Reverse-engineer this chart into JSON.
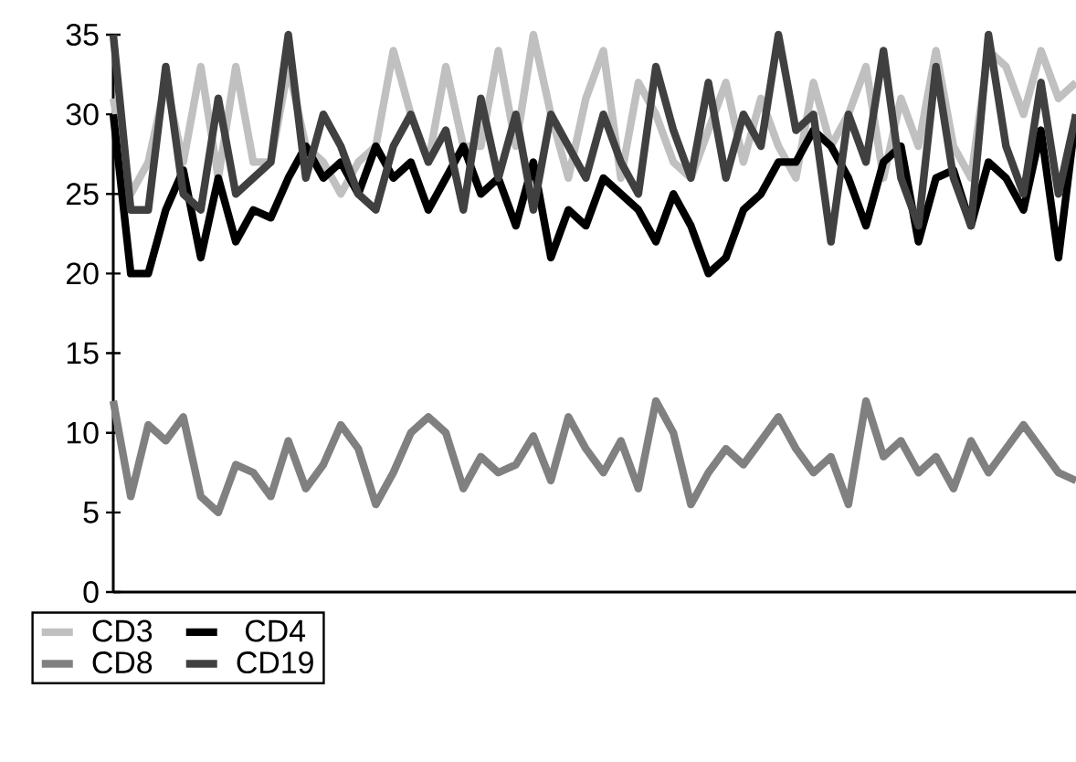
{
  "chart_data": {
    "type": "line",
    "categories": [
      null,
      null,
      null,
      null,
      null,
      null,
      null,
      null,
      null,
      null,
      null,
      null,
      null,
      null,
      null,
      null,
      null,
      null,
      null,
      null,
      null,
      null,
      null,
      null,
      null,
      null,
      null,
      null,
      null,
      null,
      null,
      null,
      null,
      null,
      null,
      null,
      null,
      null,
      null,
      null,
      null,
      null,
      null,
      null,
      null,
      null,
      null,
      null,
      null,
      null,
      null,
      null,
      null,
      null,
      null,
      null
    ],
    "series": [
      {
        "name": "CD3",
        "color": "#c0c0c0",
        "values": [
          31,
          25,
          27,
          32,
          27,
          33,
          26,
          33,
          27,
          27,
          33,
          28,
          27,
          25,
          27,
          28,
          34,
          30,
          27,
          33,
          28,
          28,
          34,
          28,
          35,
          30,
          26,
          31,
          34,
          26,
          32,
          30,
          27,
          26,
          29,
          32,
          27,
          31,
          28,
          26,
          32,
          28,
          30,
          33,
          26,
          31,
          28,
          34,
          28,
          26,
          34,
          33,
          30,
          34,
          31,
          32
        ]
      },
      {
        "name": "CD4",
        "color": "#000000",
        "values": [
          30,
          20,
          20,
          24,
          26.5,
          21,
          26,
          22,
          24,
          23.5,
          26,
          28,
          26,
          27,
          25,
          28,
          26,
          27,
          24,
          26,
          28,
          25,
          26,
          23,
          27,
          21,
          24,
          23,
          26,
          25,
          24,
          22,
          25,
          23,
          20,
          21,
          24,
          25,
          27,
          27,
          29,
          28,
          26,
          23,
          27,
          28,
          22,
          26,
          26.5,
          23,
          27,
          26,
          24,
          29,
          21,
          30
        ]
      },
      {
        "name": "CD8",
        "color": "#808080",
        "values": [
          12,
          6,
          10.5,
          9.5,
          11,
          6,
          5,
          8,
          7.5,
          6,
          9.5,
          6.5,
          8,
          10.5,
          9,
          5.5,
          7.5,
          10,
          11,
          10,
          6.5,
          8.5,
          7.5,
          8,
          9.8,
          7,
          11,
          9,
          7.5,
          9.5,
          6.5,
          12,
          10,
          5.5,
          7.5,
          9,
          8,
          9.5,
          11,
          9,
          7.5,
          8.5,
          5.5,
          12,
          8.5,
          9.5,
          7.5,
          8.5,
          6.5,
          9.5,
          7.5,
          9,
          10.5,
          9,
          7.5,
          7
        ]
      },
      {
        "name": "CD19",
        "color": "#404040",
        "values": [
          35,
          24,
          24,
          33,
          25,
          24,
          31,
          25,
          26,
          27,
          35,
          26,
          30,
          28,
          25,
          24,
          28,
          30,
          27,
          29,
          24,
          31,
          26,
          30,
          24,
          30,
          28,
          26,
          30,
          27,
          25,
          33,
          29,
          26,
          32,
          26,
          30,
          28,
          35,
          29,
          30,
          22,
          30,
          27,
          34,
          26,
          23,
          33,
          26,
          23,
          35,
          28,
          25,
          32,
          25,
          30
        ]
      }
    ],
    "ylim": [
      0,
      35
    ],
    "yticks": [
      0,
      5,
      10,
      15,
      20,
      25,
      30,
      35
    ],
    "grid": false,
    "legend": "bottom",
    "marker": "none",
    "line_style": "solid",
    "tick_labels": "y"
  }
}
